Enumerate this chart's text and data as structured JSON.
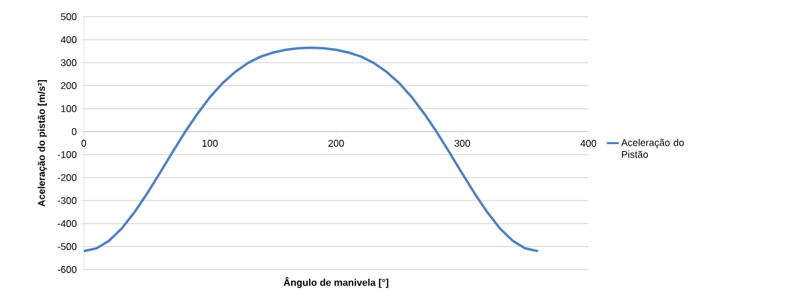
{
  "chart_data": {
    "type": "line",
    "xlabel": "Ângulo de manivela [°]",
    "ylabel": "Aceleração do pistão [m/s²]",
    "x": [
      0,
      10,
      20,
      30,
      40,
      50,
      60,
      70,
      80,
      90,
      100,
      110,
      120,
      130,
      140,
      150,
      160,
      170,
      180,
      190,
      200,
      210,
      220,
      230,
      240,
      250,
      260,
      270,
      280,
      290,
      300,
      310,
      320,
      330,
      340,
      350,
      360
    ],
    "series": [
      {
        "name": "Aceleração do Pistão",
        "color": "#4f81bd",
        "values": [
          -520,
          -508,
          -475,
          -422,
          -352,
          -271,
          -183,
          -92,
          -4,
          77,
          150,
          211,
          260,
          298,
          326,
          344,
          356,
          363,
          365,
          363,
          356,
          344,
          326,
          298,
          260,
          211,
          150,
          77,
          -4,
          -92,
          -183,
          -271,
          -352,
          -422,
          -475,
          -508,
          -520
        ]
      }
    ],
    "xlim": [
      0,
      400
    ],
    "ylim": [
      -600,
      500
    ],
    "xticks": [
      0,
      100,
      200,
      300,
      400
    ],
    "yticks": [
      -600,
      -500,
      -400,
      -300,
      -200,
      -100,
      0,
      100,
      200,
      300,
      400,
      500
    ],
    "grid": "y",
    "legend": "right",
    "marker": "none",
    "line_style": "solid"
  }
}
